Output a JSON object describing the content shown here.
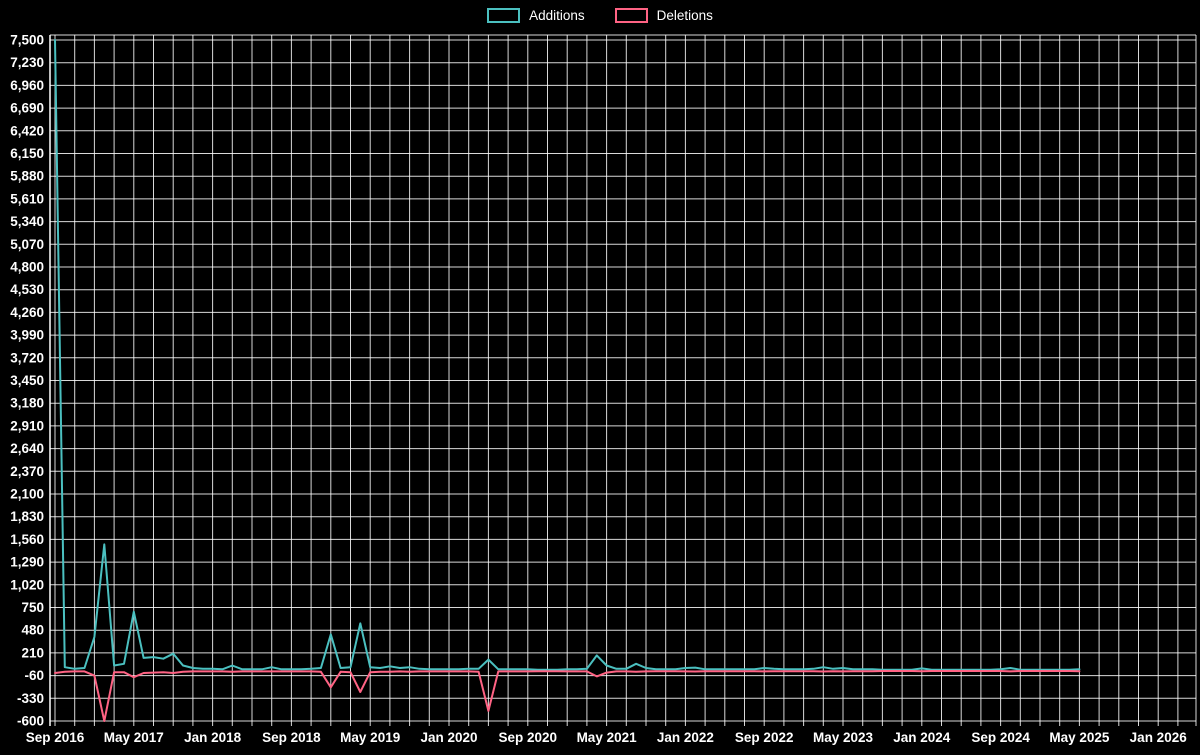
{
  "legend": {
    "items": [
      {
        "label": "Additions",
        "color": "#4bc0c0"
      },
      {
        "label": "Deletions",
        "color": "#ff6384"
      }
    ]
  },
  "chart_data": {
    "type": "line",
    "title": "",
    "background": "#000000",
    "grid": {
      "color": "rgba(255,255,255,0.85)",
      "axis_color": "#ffffff",
      "gridline_every_months": 2
    },
    "x_axis": {
      "start_month_label": "Sep 2016",
      "end_month_label": "Jan 2026",
      "months_total": 114,
      "points_cadence": "monthly"
    },
    "x_ticks": [
      {
        "label": "Sep 2016",
        "month": 0
      },
      {
        "label": "May 2017",
        "month": 8
      },
      {
        "label": "Jan 2018",
        "month": 16
      },
      {
        "label": "Sep 2018",
        "month": 24
      },
      {
        "label": "May 2019",
        "month": 32
      },
      {
        "label": "Jan 2020",
        "month": 40
      },
      {
        "label": "Sep 2020",
        "month": 48
      },
      {
        "label": "May 2021",
        "month": 56
      },
      {
        "label": "Jan 2022",
        "month": 64
      },
      {
        "label": "Sep 2022",
        "month": 72
      },
      {
        "label": "May 2023",
        "month": 80
      },
      {
        "label": "Jan 2024",
        "month": 88
      },
      {
        "label": "Sep 2024",
        "month": 96
      },
      {
        "label": "May 2025",
        "month": 104
      },
      {
        "label": "Jan 2026",
        "month": 112
      }
    ],
    "y_axis": {
      "min": -600,
      "max": 7500,
      "step": 270
    },
    "y_tick_labels": [
      "7,500",
      "7,230",
      "6,960",
      "6,690",
      "6,420",
      "6,150",
      "5,880",
      "5,610",
      "5,340",
      "5,070",
      "4,800",
      "4,530",
      "4,260",
      "3,990",
      "3,720",
      "3,450",
      "3,180",
      "2,910",
      "2,640",
      "2,370",
      "2,100",
      "1,830",
      "1,560",
      "1,290",
      "1,020",
      "750",
      "480",
      "210",
      "-60",
      "-330",
      "-600"
    ],
    "series": [
      {
        "name": "Additions",
        "color": "#4bc0c0",
        "line_width": 2,
        "values": [
          7500,
          40,
          20,
          30,
          400,
          1500,
          60,
          80,
          700,
          150,
          160,
          140,
          200,
          60,
          30,
          20,
          20,
          15,
          60,
          15,
          15,
          15,
          40,
          15,
          15,
          15,
          20,
          30,
          430,
          30,
          40,
          560,
          40,
          30,
          50,
          30,
          40,
          20,
          15,
          15,
          15,
          15,
          20,
          20,
          130,
          15,
          15,
          15,
          15,
          10,
          10,
          10,
          15,
          15,
          20,
          180,
          60,
          20,
          20,
          80,
          30,
          15,
          15,
          15,
          30,
          35,
          15,
          15,
          15,
          15,
          15,
          15,
          30,
          20,
          15,
          15,
          15,
          20,
          40,
          20,
          30,
          15,
          15,
          15,
          10,
          10,
          10,
          10,
          25,
          10,
          10,
          10,
          10,
          10,
          10,
          10,
          15,
          30,
          10,
          10,
          10,
          10,
          10,
          10,
          15
        ]
      },
      {
        "name": "Deletions",
        "color": "#ff6384",
        "line_width": 2,
        "values": [
          -30,
          -15,
          -10,
          -10,
          -60,
          -600,
          -20,
          -20,
          -80,
          -30,
          -25,
          -20,
          -30,
          -15,
          -10,
          -10,
          -10,
          -10,
          -15,
          -10,
          -10,
          -10,
          -10,
          -10,
          -10,
          -10,
          -10,
          -15,
          -200,
          -15,
          -20,
          -255,
          -20,
          -15,
          -15,
          -10,
          -15,
          -10,
          -10,
          -10,
          -10,
          -10,
          -10,
          -15,
          -480,
          -10,
          -10,
          -10,
          -10,
          -8,
          -8,
          -8,
          -10,
          -10,
          -10,
          -70,
          -25,
          -10,
          -10,
          -15,
          -10,
          -8,
          -8,
          -8,
          -10,
          -12,
          -8,
          -8,
          -8,
          -8,
          -8,
          -8,
          -10,
          -8,
          -8,
          -8,
          -8,
          -8,
          -12,
          -8,
          -10,
          -8,
          -8,
          -8,
          -6,
          -6,
          -6,
          -6,
          -8,
          -6,
          -6,
          -6,
          -6,
          -6,
          -6,
          -6,
          -6,
          -10,
          -6,
          -6,
          -6,
          -6,
          -6,
          -6,
          -8
        ]
      }
    ]
  }
}
